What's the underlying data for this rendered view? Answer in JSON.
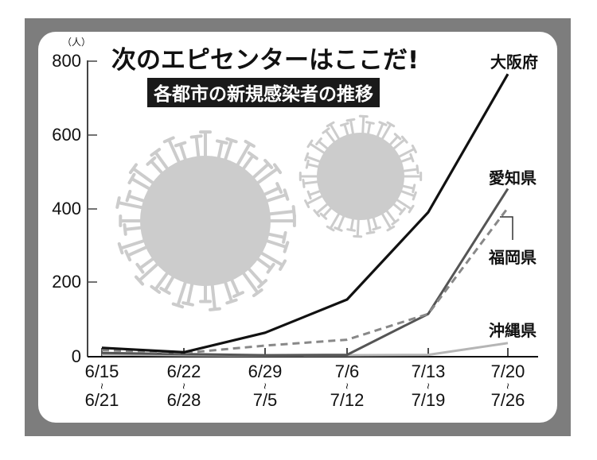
{
  "title": "次のエピセンターはここだ!",
  "subtitle": "各都市の新規感染者の推移",
  "y_unit": "（人）",
  "colors": {
    "frame": "#7d7d7d",
    "panel": "#ffffff",
    "osaka": "#111111",
    "aichi": "#555555",
    "fukuoka": "#888888",
    "okinawa": "#b5b5b5",
    "virus": "#cccccc"
  },
  "y_ticks": [
    "800",
    "600",
    "400",
    "200",
    "0"
  ],
  "x_ticks": [
    {
      "start": "6/15",
      "end": "6/21"
    },
    {
      "start": "6/22",
      "end": "6/28"
    },
    {
      "start": "6/29",
      "end": "7/5"
    },
    {
      "start": "7/6",
      "end": "7/12"
    },
    {
      "start": "7/13",
      "end": "7/19"
    },
    {
      "start": "7/20",
      "end": "7/26"
    }
  ],
  "range_symbol": "~",
  "labels": {
    "osaka": "大阪府",
    "aichi": "愛知県",
    "fukuoka": "福岡県",
    "okinawa": "沖縄県"
  },
  "chart_data": {
    "type": "line",
    "title": "次のエピセンターはここだ!",
    "subtitle": "各都市の新規感染者の推移",
    "xlabel": "",
    "ylabel": "（人）",
    "ylim": [
      0,
      800
    ],
    "yticks": [
      0,
      200,
      400,
      600,
      800
    ],
    "grid": false,
    "legend_position": "direct labels at right end of lines",
    "categories": [
      "6/15~6/21",
      "6/22~6/28",
      "6/29~7/5",
      "7/6~7/12",
      "7/13~7/19",
      "7/20~7/26"
    ],
    "series": [
      {
        "name": "大阪府",
        "style": "solid black",
        "values": [
          22,
          10,
          63,
          153,
          390,
          765
        ]
      },
      {
        "name": "愛知県",
        "style": "solid dark gray",
        "values": [
          8,
          5,
          2,
          3,
          114,
          454
        ]
      },
      {
        "name": "福岡県",
        "style": "dashed gray",
        "values": [
          16,
          8,
          28,
          44,
          114,
          402
        ]
      },
      {
        "name": "沖縄県",
        "style": "solid light gray",
        "values": [
          4,
          2,
          1,
          2,
          3,
          35
        ]
      }
    ]
  }
}
